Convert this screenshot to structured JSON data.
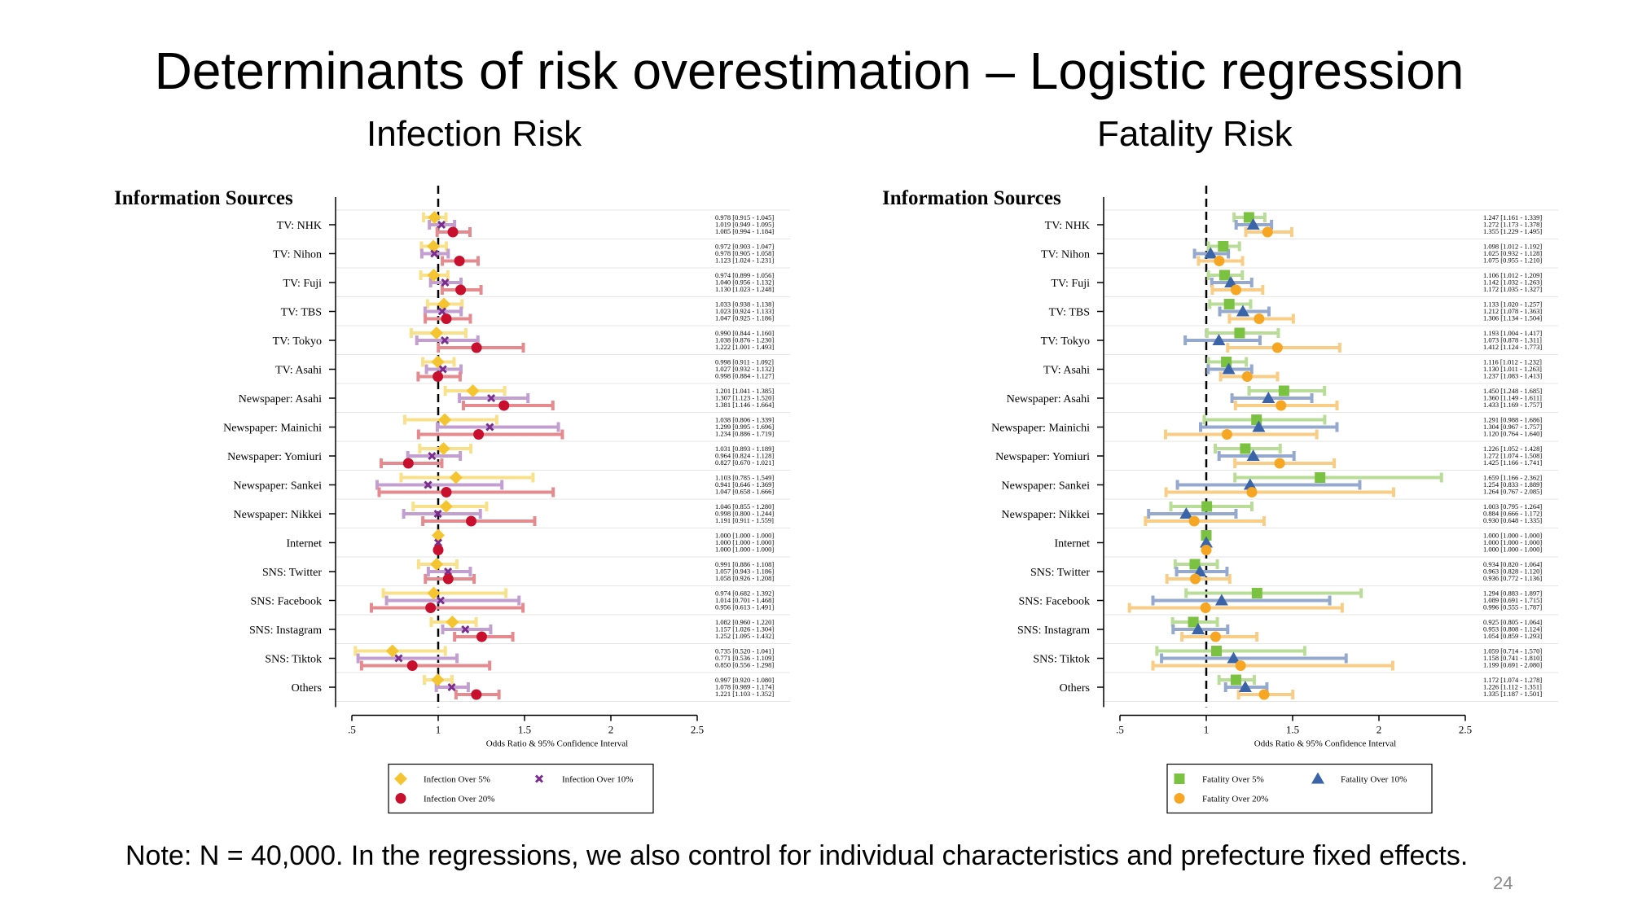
{
  "slide": {
    "title": "Determinants of risk overestimation – Logistic regression",
    "note": "Note: N = 40,000. In the regressions, we also control for individual characteristics and prefecture fixed effects.",
    "page_number": "24"
  },
  "chart_data": [
    {
      "type": "scatter",
      "title": "Infection Risk",
      "ylabel": "Information Sources",
      "xlabel": "Odds Ratio & 95% Confidence Interval",
      "xlim": [
        0.5,
        2.5
      ],
      "xticks": [
        ".5",
        "1",
        "1.5",
        "2",
        "2.5"
      ],
      "reference_line": 1,
      "legend_placement": "bottom",
      "categories": [
        "TV: NHK",
        "TV: Nihon",
        "TV: Fuji",
        "TV: TBS",
        "TV: Tokyo",
        "TV: Asahi",
        "Newspaper: Asahi",
        "Newspaper: Mainichi",
        "Newspaper: Yomiuri",
        "Newspaper: Sankei",
        "Newspaper: Nikkei",
        "Internet",
        "SNS: Twitter",
        "SNS: Facebook",
        "SNS: Instagram",
        "SNS: Tiktok",
        "Others"
      ],
      "series": [
        {
          "name": "Infection Over 5%",
          "color": "#f5c531",
          "ci_color": "#f9e08b",
          "marker": "diamond",
          "values": [
            0.978,
            0.972,
            0.974,
            1.033,
            0.99,
            0.998,
            1.201,
            1.038,
            1.031,
            1.103,
            1.046,
            1.0,
            0.991,
            0.974,
            1.082,
            0.735,
            0.997
          ],
          "lower": [
            0.915,
            0.903,
            0.899,
            0.938,
            0.844,
            0.911,
            1.041,
            0.806,
            0.893,
            0.785,
            0.855,
            1.0,
            0.886,
            0.682,
            0.96,
            0.52,
            0.92
          ],
          "upper": [
            1.045,
            1.047,
            1.056,
            1.138,
            1.16,
            1.092,
            1.385,
            1.339,
            1.189,
            1.549,
            1.28,
            1.0,
            1.108,
            1.392,
            1.22,
            1.041,
            1.08
          ]
        },
        {
          "name": "Infection Over 10%",
          "color": "#7b2d8e",
          "ci_color": "#c29fd0",
          "marker": "x",
          "values": [
            1.019,
            0.978,
            1.04,
            1.023,
            1.038,
            1.027,
            1.307,
            1.299,
            0.964,
            0.941,
            0.998,
            1.0,
            1.057,
            1.014,
            1.157,
            0.771,
            1.078
          ],
          "lower": [
            0.949,
            0.905,
            0.956,
            0.924,
            0.876,
            0.932,
            1.123,
            0.995,
            0.824,
            0.646,
            0.8,
            1.0,
            0.943,
            0.701,
            1.026,
            0.536,
            0.989
          ],
          "upper": [
            1.095,
            1.058,
            1.132,
            1.133,
            1.23,
            1.132,
            1.52,
            1.696,
            1.128,
            1.369,
            1.244,
            1.0,
            1.186,
            1.468,
            1.304,
            1.109,
            1.174
          ]
        },
        {
          "name": "Infection Over 20%",
          "color": "#c8102e",
          "ci_color": "#e58a8e",
          "marker": "circle",
          "values": [
            1.085,
            1.123,
            1.13,
            1.047,
            1.222,
            0.998,
            1.381,
            1.234,
            0.827,
            1.047,
            1.191,
            1.0,
            1.058,
            0.956,
            1.252,
            0.85,
            1.221
          ],
          "lower": [
            0.994,
            1.024,
            1.023,
            0.925,
            1.001,
            0.884,
            1.146,
            0.886,
            0.67,
            0.658,
            0.911,
            1.0,
            0.926,
            0.613,
            1.095,
            0.556,
            1.103
          ],
          "upper": [
            1.184,
            1.231,
            1.248,
            1.186,
            1.493,
            1.127,
            1.664,
            1.719,
            1.021,
            1.666,
            1.559,
            1.0,
            1.208,
            1.491,
            1.432,
            1.298,
            1.352
          ]
        }
      ],
      "ci_text": [
        [
          "0.978 [0.915 - 1.045]",
          "1.019 [0.949 - 1.095]",
          "1.085 [0.994 - 1.184]"
        ],
        [
          "0.972 [0.903 - 1.047]",
          "0.978 [0.905 - 1.058]",
          "1.123 [1.024 - 1.231]"
        ],
        [
          "0.974 [0.899 - 1.056]",
          "1.040 [0.956 - 1.132]",
          "1.130 [1.023 - 1.248]"
        ],
        [
          "1.033 [0.938 - 1.138]",
          "1.023 [0.924 - 1.133]",
          "1.047 [0.925 - 1.186]"
        ],
        [
          "0.990 [0.844 - 1.160]",
          "1.038 [0.876 - 1.230]",
          "1.222 [1.001 - 1.493]"
        ],
        [
          "0.998 [0.911 - 1.092]",
          "1.027 [0.932 - 1.132]",
          "0.998 [0.884 - 1.127]"
        ],
        [
          "1.201 [1.041 - 1.385]",
          "1.307 [1.123 - 1.520]",
          "1.381 [1.146 - 1.664]"
        ],
        [
          "1.038 [0.806 - 1.339]",
          "1.299 [0.995 - 1.696]",
          "1.234 [0.886 - 1.719]"
        ],
        [
          "1.031 [0.893 - 1.189]",
          "0.964 [0.824 - 1.128]",
          "0.827 [0.670 - 1.021]"
        ],
        [
          "1.103 [0.785 - 1.549]",
          "0.941 [0.646 - 1.369]",
          "1.047 [0.658 - 1.666]"
        ],
        [
          "1.046 [0.855 - 1.280]",
          "0.998 [0.800 - 1.244]",
          "1.191 [0.911 - 1.559]"
        ],
        [
          "1.000 [1.000 - 1.000]",
          "1.000 [1.000 - 1.000]",
          "1.000 [1.000 - 1.000]"
        ],
        [
          "0.991 [0.886 - 1.108]",
          "1.057 [0.943 - 1.186]",
          "1.058 [0.926 - 1.208]"
        ],
        [
          "0.974 [0.682 - 1.392]",
          "1.014 [0.701 - 1.468]",
          "0.956 [0.613 - 1.491]"
        ],
        [
          "1.082 [0.960 - 1.220]",
          "1.157 [1.026 - 1.304]",
          "1.252 [1.095 - 1.432]"
        ],
        [
          "0.735 [0.520 - 1.041]",
          "0.771 [0.536 - 1.109]",
          "0.850 [0.556 - 1.298]"
        ],
        [
          "0.997 [0.920 - 1.080]",
          "1.078 [0.989 - 1.174]",
          "1.221 [1.103 - 1.352]"
        ]
      ]
    },
    {
      "type": "scatter",
      "title": "Fatality Risk",
      "ylabel": "Information Sources",
      "xlabel": "Odds Ratio & 95% Confidence Interval",
      "xlim": [
        0.5,
        2.5
      ],
      "xticks": [
        ".5",
        "1",
        "1.5",
        "2",
        "2.5"
      ],
      "reference_line": 1,
      "legend_placement": "bottom",
      "categories": [
        "TV: NHK",
        "TV: Nihon",
        "TV: Fuji",
        "TV: TBS",
        "TV: Tokyo",
        "TV: Asahi",
        "Newspaper: Asahi",
        "Newspaper: Mainichi",
        "Newspaper: Yomiuri",
        "Newspaper: Sankei",
        "Newspaper: Nikkei",
        "Internet",
        "SNS: Twitter",
        "SNS: Facebook",
        "SNS: Instagram",
        "SNS: Tiktok",
        "Others"
      ],
      "series": [
        {
          "name": "Fatality Over 5%",
          "color": "#7cc242",
          "ci_color": "#b9dd98",
          "marker": "square",
          "values": [
            1.247,
            1.098,
            1.106,
            1.133,
            1.193,
            1.116,
            1.45,
            1.291,
            1.226,
            1.659,
            1.003,
            1.0,
            0.934,
            1.294,
            0.925,
            1.059,
            1.172
          ],
          "lower": [
            1.161,
            1.012,
            1.012,
            1.02,
            1.004,
            1.012,
            1.248,
            0.988,
            1.052,
            1.166,
            0.795,
            1.0,
            0.82,
            0.883,
            0.805,
            0.714,
            1.074
          ],
          "upper": [
            1.339,
            1.192,
            1.209,
            1.257,
            1.417,
            1.232,
            1.685,
            1.686,
            1.428,
            2.362,
            1.264,
            1.0,
            1.064,
            1.897,
            1.064,
            1.57,
            1.278
          ]
        },
        {
          "name": "Fatality Over 10%",
          "color": "#3a63a8",
          "ci_color": "#95a9cf",
          "marker": "triangle",
          "values": [
            1.272,
            1.025,
            1.142,
            1.212,
            1.073,
            1.13,
            1.36,
            1.304,
            1.272,
            1.254,
            0.884,
            1.0,
            0.963,
            1.089,
            0.953,
            1.158,
            1.226
          ],
          "lower": [
            1.173,
            0.932,
            1.032,
            1.078,
            0.878,
            1.011,
            1.149,
            0.967,
            1.074,
            0.833,
            0.666,
            1.0,
            0.828,
            0.691,
            0.808,
            0.741,
            1.112
          ],
          "upper": [
            1.378,
            1.128,
            1.263,
            1.363,
            1.311,
            1.263,
            1.611,
            1.757,
            1.508,
            1.889,
            1.172,
            1.0,
            1.12,
            1.715,
            1.124,
            1.81,
            1.351
          ]
        },
        {
          "name": "Fatality Over 20%",
          "color": "#f6a623",
          "ci_color": "#f9cd85",
          "marker": "circle",
          "values": [
            1.355,
            1.075,
            1.172,
            1.306,
            1.412,
            1.237,
            1.433,
            1.12,
            1.425,
            1.264,
            0.93,
            1.0,
            0.936,
            0.996,
            1.054,
            1.199,
            1.335
          ],
          "lower": [
            1.229,
            0.955,
            1.035,
            1.134,
            1.124,
            1.083,
            1.169,
            0.764,
            1.166,
            0.767,
            0.648,
            1.0,
            0.772,
            0.555,
            0.859,
            0.691,
            1.187
          ],
          "upper": [
            1.495,
            1.21,
            1.327,
            1.504,
            1.773,
            1.413,
            1.757,
            1.64,
            1.741,
            2.085,
            1.335,
            1.0,
            1.136,
            1.787,
            1.293,
            2.08,
            1.501
          ]
        }
      ],
      "ci_text": [
        [
          "1.247 [1.161 - 1.339]",
          "1.272 [1.173 - 1.378]",
          "1.355 [1.229 - 1.495]"
        ],
        [
          "1.098 [1.012 - 1.192]",
          "1.025 [0.932 - 1.128]",
          "1.075 [0.955 - 1.210]"
        ],
        [
          "1.106 [1.012 - 1.209]",
          "1.142 [1.032 - 1.263]",
          "1.172 [1.035 - 1.327]"
        ],
        [
          "1.133 [1.020 - 1.257]",
          "1.212 [1.078 - 1.363]",
          "1.306 [1.134 - 1.504]"
        ],
        [
          "1.193 [1.004 - 1.417]",
          "1.073 [0.878 - 1.311]",
          "1.412 [1.124 - 1.773]"
        ],
        [
          "1.116 [1.012 - 1.232]",
          "1.130 [1.011 - 1.263]",
          "1.237 [1.083 - 1.413]"
        ],
        [
          "1.450 [1.248 - 1.685]",
          "1.360 [1.149 - 1.611]",
          "1.433 [1.169 - 1.757]"
        ],
        [
          "1.291 [0.988 - 1.686]",
          "1.304 [0.967 - 1.757]",
          "1.120 [0.764 - 1.640]"
        ],
        [
          "1.226 [1.052 - 1.428]",
          "1.272 [1.074 - 1.508]",
          "1.425 [1.166 - 1.741]"
        ],
        [
          "1.659 [1.166 - 2.362]",
          "1.254 [0.833 - 1.889]",
          "1.264 [0.767 - 2.085]"
        ],
        [
          "1.003 [0.795 - 1.264]",
          "0.884 [0.666 - 1.172]",
          "0.930 [0.648 - 1.335]"
        ],
        [
          "1.000 [1.000 - 1.000]",
          "1.000 [1.000 - 1.000]",
          "1.000 [1.000 - 1.000]"
        ],
        [
          "0.934 [0.820 - 1.064]",
          "0.963 [0.828 - 1.120]",
          "0.936 [0.772 - 1.136]"
        ],
        [
          "1.294 [0.883 - 1.897]",
          "1.089 [0.691 - 1.715]",
          "0.996 [0.555 - 1.787]"
        ],
        [
          "0.925 [0.805 - 1.064]",
          "0.953 [0.808 - 1.124]",
          "1.054 [0.859 - 1.293]"
        ],
        [
          "1.059 [0.714 - 1.570]",
          "1.158 [0.741 - 1.810]",
          "1.199 [0.691 - 2.080]"
        ],
        [
          "1.172 [1.074 - 1.278]",
          "1.226 [1.112 - 1.351]",
          "1.335 [1.187 - 1.501]"
        ]
      ]
    }
  ]
}
